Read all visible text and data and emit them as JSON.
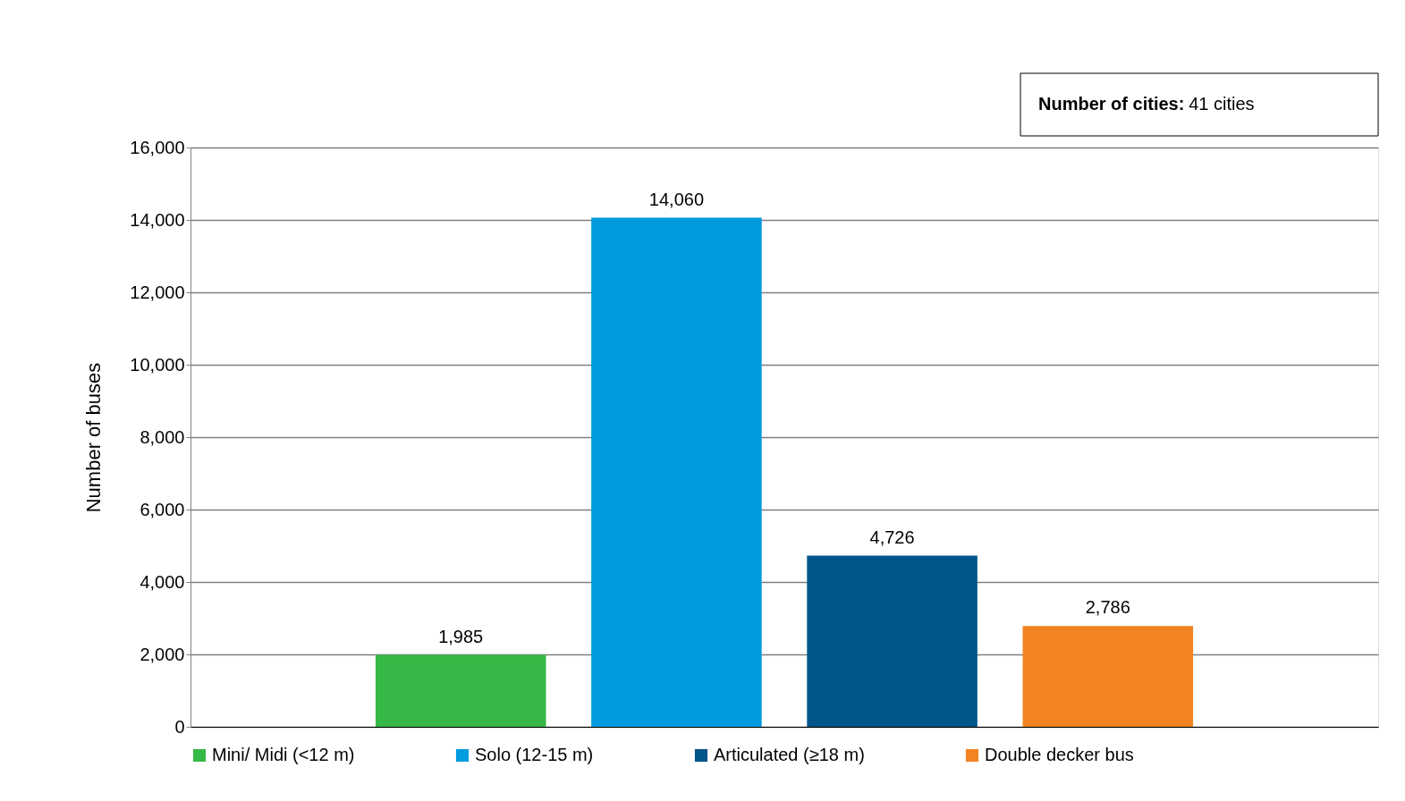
{
  "chart_data": {
    "type": "bar",
    "categories": [
      null
    ],
    "ylabel": "Number of buses",
    "series": [
      {
        "name": "Mini/ Midi (<12 m)",
        "color": "#35b845",
        "values": [
          1985
        ],
        "value_labels": [
          "1,985"
        ]
      },
      {
        "name": "Solo (12-15 m)",
        "color": "#009ade",
        "values": [
          14060
        ],
        "value_labels": [
          "14,060"
        ]
      },
      {
        "name": "Articulated (≥18 m)",
        "color": "#00558a",
        "values": [
          4726
        ],
        "value_labels": [
          "4,726"
        ]
      },
      {
        "name": "Double decker bus",
        "color": "#f28323",
        "values": [
          2786
        ],
        "value_labels": [
          "2,786"
        ]
      }
    ],
    "ylim": [
      0,
      16000
    ],
    "yticks": [
      0,
      {
        "value": 2000,
        "label": "2,000"
      },
      {
        "value": 4000,
        "label": "4,000"
      },
      {
        "value": 6000,
        "label": "6,000"
      },
      {
        "value": 8000,
        "label": "8,000"
      },
      {
        "value": 10000,
        "label": "10,000"
      },
      {
        "value": 12000,
        "label": "12,000"
      },
      {
        "value": 14000,
        "label": "14,000"
      },
      {
        "value": 16000,
        "label": "16,000"
      }
    ],
    "grid": "y",
    "legend": "bottom",
    "annotations": [
      "Number of cities: 41 cities"
    ]
  }
}
